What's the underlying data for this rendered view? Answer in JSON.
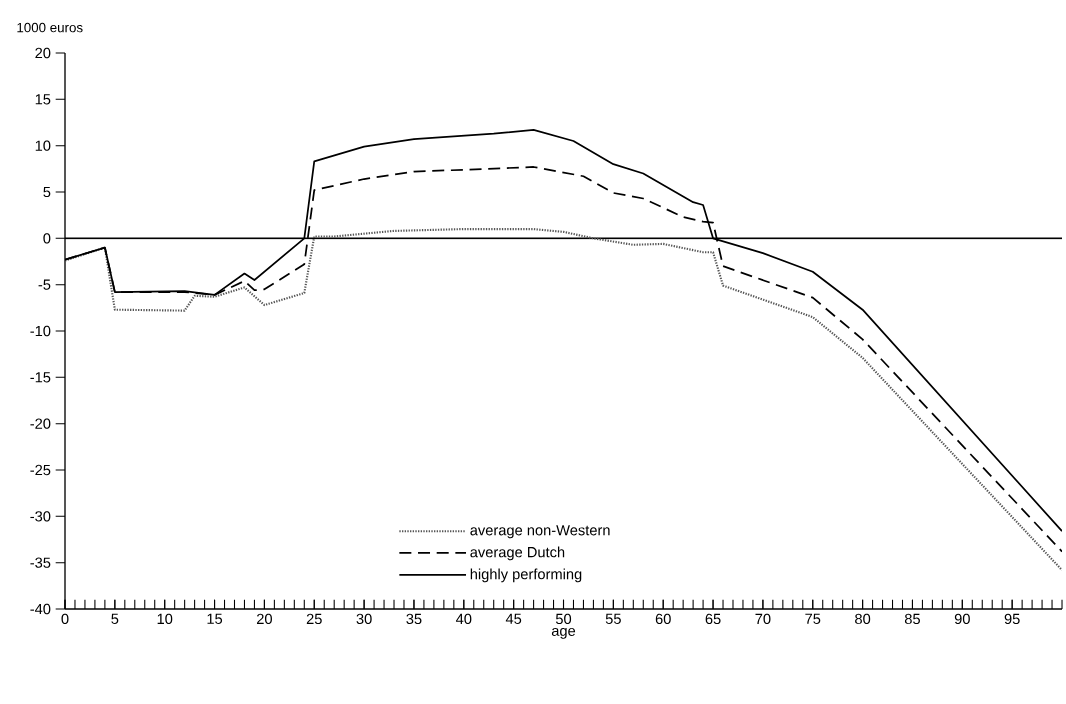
{
  "chart_data": {
    "type": "line",
    "xlabel": "age",
    "ylabel": "1000 euros",
    "xlim": [
      0,
      100
    ],
    "ylim": [
      -40,
      20
    ],
    "xticks": [
      0,
      5,
      10,
      15,
      20,
      25,
      30,
      35,
      40,
      45,
      50,
      55,
      60,
      65,
      70,
      75,
      80,
      85,
      90,
      95
    ],
    "yticks": [
      -40,
      -35,
      -30,
      -25,
      -20,
      -15,
      -10,
      -5,
      0,
      5,
      10,
      15,
      20
    ],
    "grid": false,
    "legend": "bottom",
    "marker": "none",
    "ref_lines": [
      {
        "axis": "y",
        "value": 0,
        "color": "#000000",
        "line_style": "solid"
      }
    ],
    "series": [
      {
        "name": "average non-Western",
        "color": "#555555",
        "line_style": "dotted",
        "x": [
          0,
          4,
          5,
          12,
          13,
          15,
          18,
          20,
          24,
          25,
          27,
          33,
          40,
          47,
          50,
          53,
          57,
          60,
          64,
          65,
          66,
          75,
          80,
          100
        ],
        "values": [
          -2.4,
          -1.0,
          -7.7,
          -7.8,
          -6.2,
          -6.3,
          -5.3,
          -7.2,
          -5.9,
          0.2,
          0.2,
          0.8,
          1.0,
          1.0,
          0.7,
          0.0,
          -0.7,
          -0.6,
          -1.5,
          -1.5,
          -5.1,
          -8.5,
          -12.9,
          -35.8
        ]
      },
      {
        "name": "average Dutch",
        "color": "#000000",
        "line_style": "dashed",
        "x": [
          0,
          4,
          5,
          12,
          15,
          18,
          19,
          20,
          24,
          25,
          30,
          35,
          40,
          47,
          52,
          55,
          58,
          62,
          64,
          65,
          66,
          75,
          80,
          100
        ],
        "values": [
          -2.3,
          -1.0,
          -5.8,
          -5.8,
          -6.1,
          -4.6,
          -5.6,
          -5.5,
          -2.8,
          5.2,
          6.4,
          7.2,
          7.4,
          7.7,
          6.7,
          4.9,
          4.3,
          2.3,
          1.8,
          1.7,
          -3.0,
          -6.4,
          -10.9,
          -33.8
        ]
      },
      {
        "name": "highly performing",
        "color": "#000000",
        "line_style": "solid",
        "x": [
          0,
          4,
          5,
          12,
          15,
          18,
          19,
          24,
          25,
          30,
          35,
          43,
          47,
          51,
          55,
          58,
          63,
          64,
          65,
          70,
          75,
          80,
          100
        ],
        "values": [
          -2.3,
          -1.0,
          -5.8,
          -5.7,
          -6.1,
          -3.8,
          -4.5,
          0.0,
          8.3,
          9.9,
          10.7,
          11.3,
          11.7,
          10.5,
          8.0,
          7.0,
          3.9,
          3.6,
          0.0,
          -1.6,
          -3.6,
          -7.7,
          -31.6
        ]
      }
    ]
  }
}
